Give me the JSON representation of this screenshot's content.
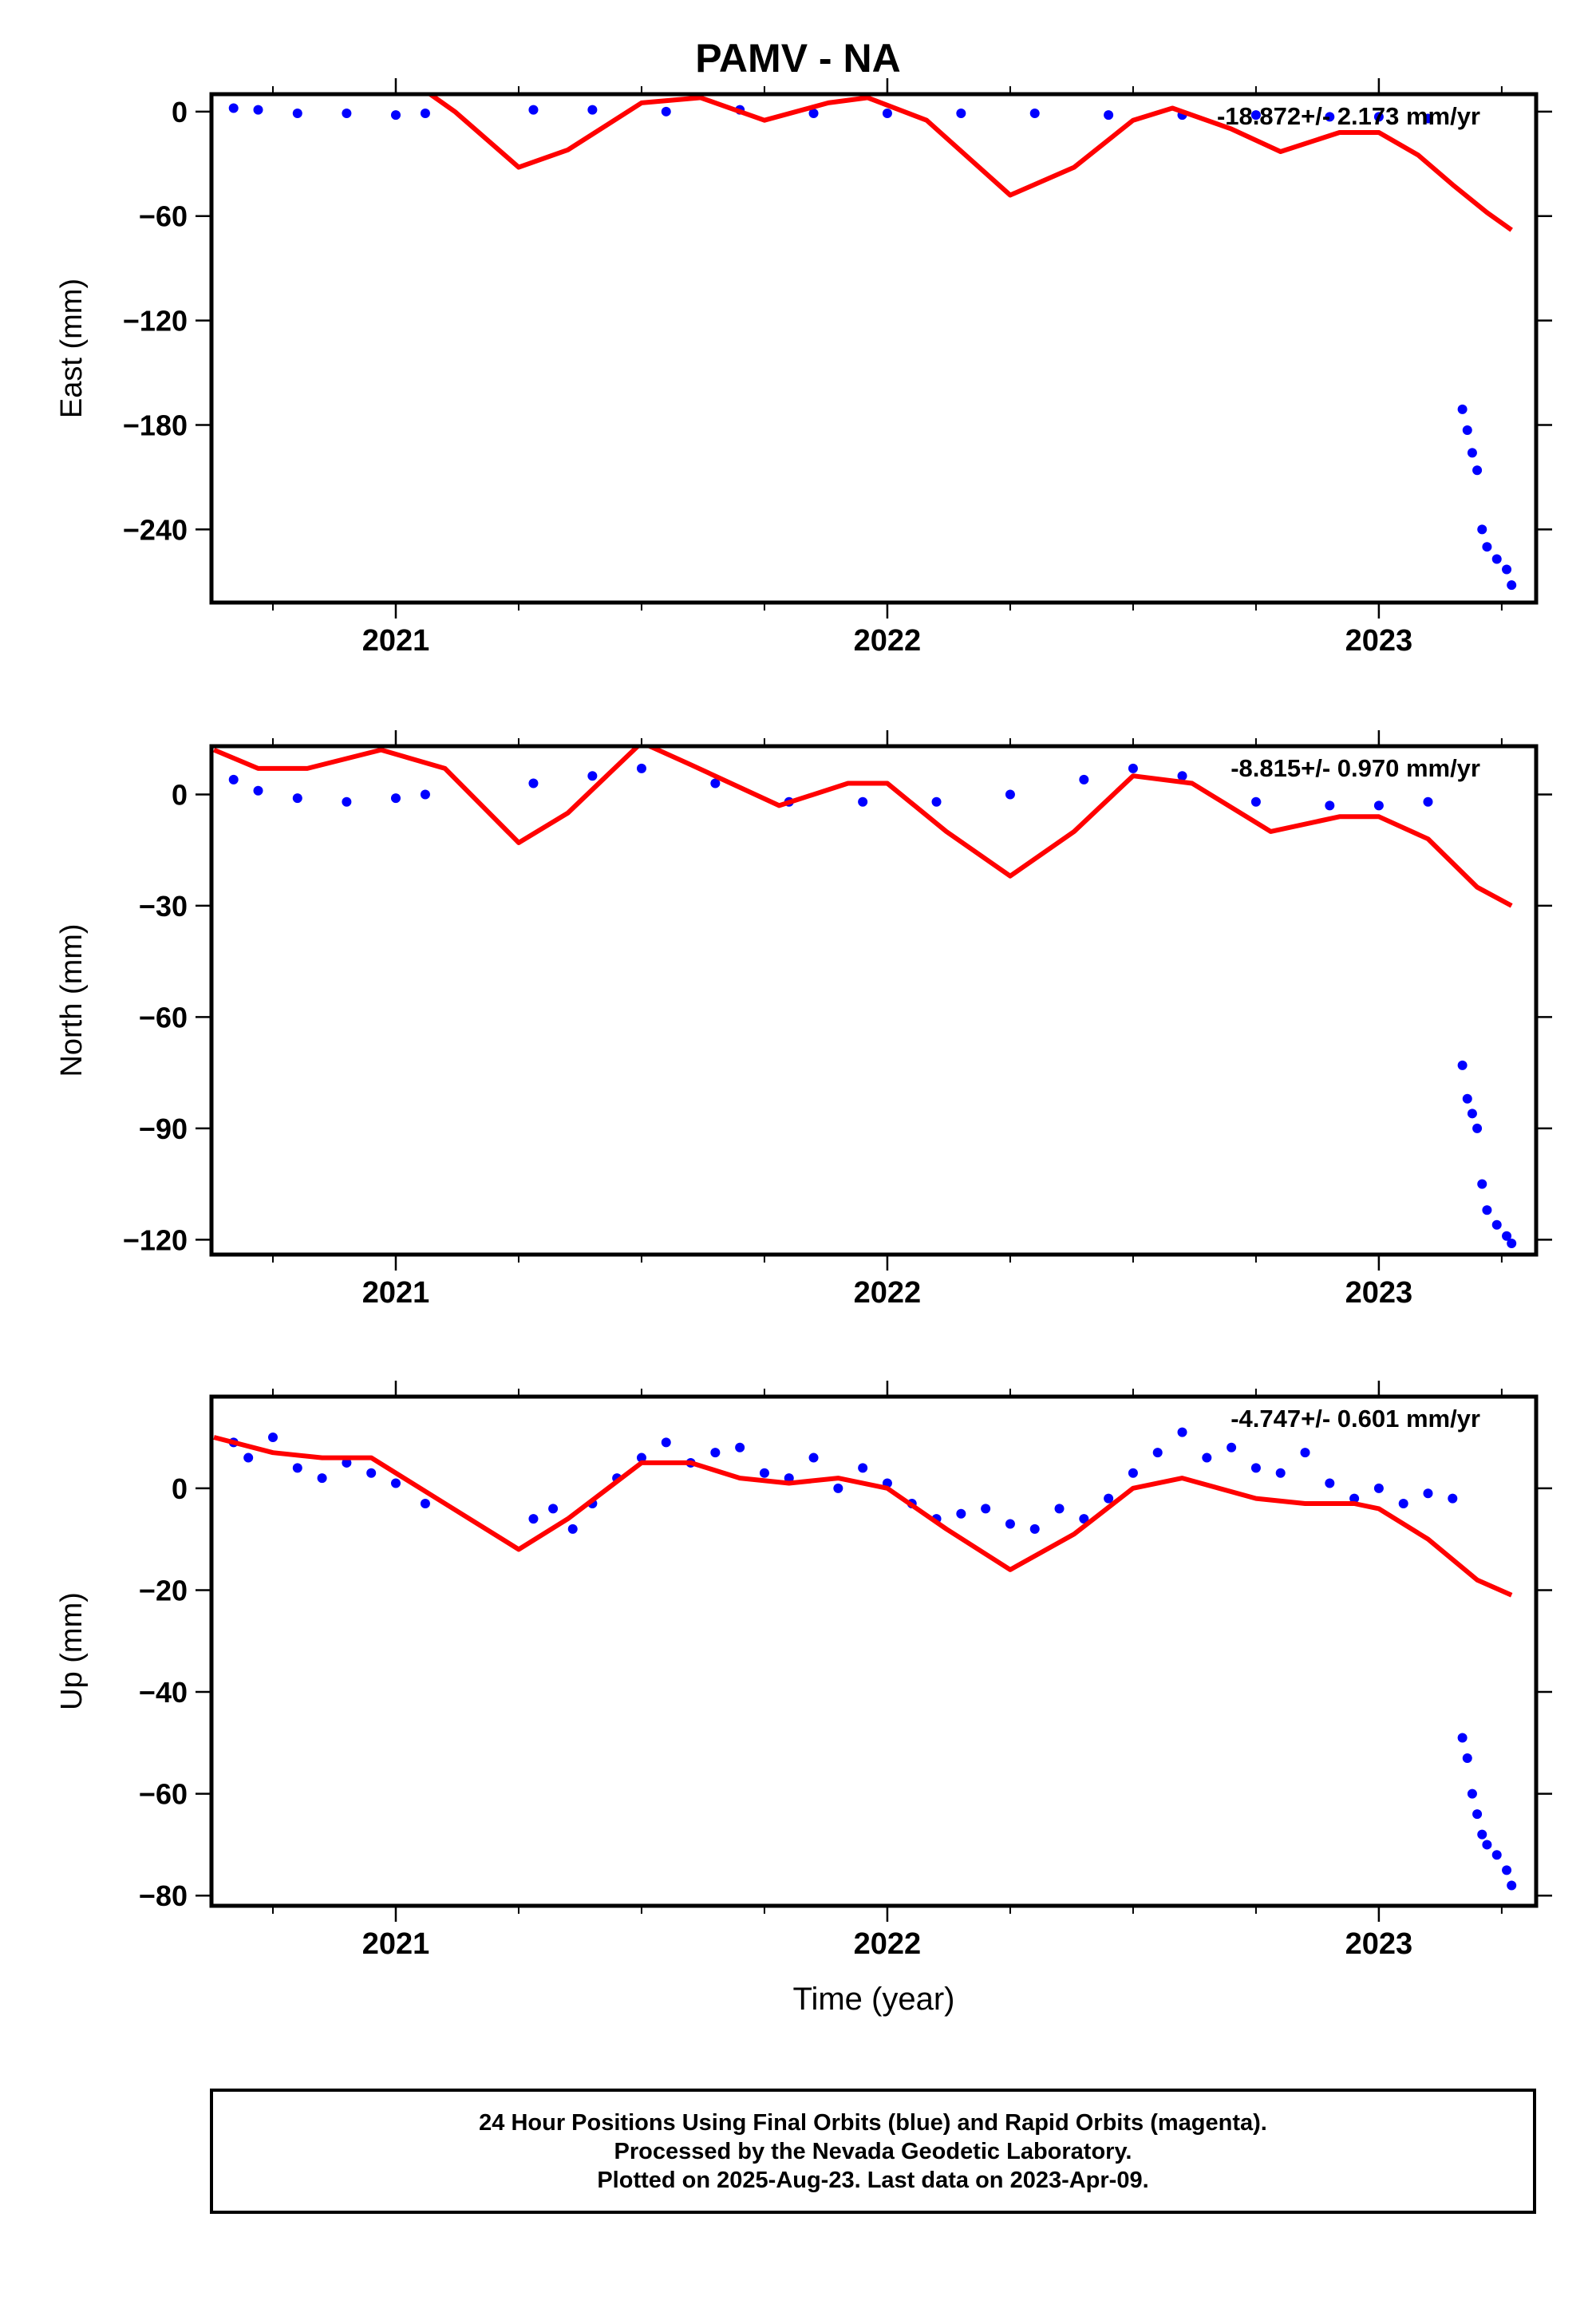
{
  "title": "PAMV - NA",
  "chart_data": [
    {
      "type": "scatter",
      "panel": "east",
      "ylabel": "East (mm)",
      "xlabel": "",
      "rate_label": "-18.872+/- 2.173 mm/yr",
      "ylim": [
        -282,
        10
      ],
      "yticks": [
        0,
        -60,
        -120,
        -180,
        -240
      ],
      "xlim": [
        2020.625,
        2023.32
      ],
      "xticks": [
        2021,
        2022,
        2023
      ],
      "series": [
        {
          "name": "",
          "color": "#0000ff",
          "x": [
            2020.67,
            2020.72,
            2020.8,
            2020.9,
            2021.0,
            2021.06,
            2021.28,
            2021.4,
            2021.55,
            2021.7,
            2021.85,
            2022.0,
            2022.15,
            2022.3,
            2022.45,
            2022.6,
            2022.75,
            2022.9,
            2023.0,
            2023.1,
            2023.17,
            2023.18,
            2023.19,
            2023.2,
            2023.21,
            2023.22,
            2023.24,
            2023.26,
            2023.27
          ],
          "y": [
            2,
            1,
            -1,
            -1,
            -2,
            -1,
            1,
            1,
            0,
            1,
            -1,
            -1,
            -1,
            -1,
            -2,
            -2,
            -2,
            -3,
            -3,
            -4,
            -171,
            -183,
            -196,
            -206,
            -240,
            -250,
            -257,
            -263,
            -272
          ]
        },
        {
          "name": "",
          "color": "#ff0000",
          "type": "line",
          "x": [
            2021.07,
            2021.12,
            2021.25,
            2021.35,
            2021.5,
            2021.62,
            2021.75,
            2021.88,
            2021.96,
            2022.08,
            2022.25,
            2022.38,
            2022.5,
            2022.58,
            2022.7,
            2022.8,
            2022.92,
            2023.0,
            2023.08,
            2023.15,
            2023.22,
            2023.27
          ],
          "y": [
            10,
            0,
            -32,
            -22,
            5,
            8,
            -5,
            5,
            8,
            -5,
            -48,
            -32,
            -5,
            2,
            -10,
            -23,
            -12,
            -12,
            -25,
            -42,
            -58,
            -68
          ]
        }
      ]
    },
    {
      "type": "scatter",
      "panel": "north",
      "ylabel": "North (mm)",
      "xlabel": "",
      "rate_label": "-8.815+/- 0.970 mm/yr",
      "ylim": [
        -124,
        13
      ],
      "yticks": [
        0,
        -30,
        -60,
        -90,
        -120
      ],
      "xlim": [
        2020.625,
        2023.32
      ],
      "xticks": [
        2021,
        2022,
        2023
      ],
      "series": [
        {
          "name": "",
          "color": "#0000ff",
          "x": [
            2020.67,
            2020.72,
            2020.8,
            2020.9,
            2021.0,
            2021.06,
            2021.28,
            2021.4,
            2021.5,
            2021.65,
            2021.8,
            2021.95,
            2022.1,
            2022.25,
            2022.4,
            2022.5,
            2022.6,
            2022.75,
            2022.9,
            2023.0,
            2023.1,
            2023.17,
            2023.18,
            2023.19,
            2023.2,
            2023.21,
            2023.22,
            2023.24,
            2023.26,
            2023.27
          ],
          "y": [
            4,
            1,
            -1,
            -2,
            -1,
            0,
            3,
            5,
            7,
            3,
            -2,
            -2,
            -2,
            0,
            4,
            7,
            5,
            -2,
            -3,
            -3,
            -2,
            -73,
            -82,
            -86,
            -90,
            -105,
            -112,
            -116,
            -119,
            -121
          ]
        },
        {
          "name": "",
          "color": "#ff0000",
          "type": "line",
          "x": [
            2020.63,
            2020.72,
            2020.82,
            2020.97,
            2021.1,
            2021.25,
            2021.35,
            2021.5,
            2021.6,
            2021.78,
            2021.92,
            2022.0,
            2022.12,
            2022.25,
            2022.38,
            2022.5,
            2022.62,
            2022.78,
            2022.92,
            2023.0,
            2023.1,
            2023.2,
            2023.27
          ],
          "y": [
            12,
            7,
            7,
            12,
            7,
            -13,
            -5,
            14,
            8,
            -3,
            3,
            3,
            -10,
            -22,
            -10,
            5,
            3,
            -10,
            -6,
            -6,
            -12,
            -25,
            -30
          ]
        }
      ]
    },
    {
      "type": "scatter",
      "panel": "up",
      "ylabel": "Up (mm)",
      "xlabel": "Time (year)",
      "rate_label": "-4.747+/- 0.601 mm/yr",
      "ylim": [
        -82,
        18
      ],
      "yticks": [
        0,
        -20,
        -40,
        -60,
        -80
      ],
      "xlim": [
        2020.625,
        2023.32
      ],
      "xticks": [
        2021,
        2022,
        2023
      ],
      "series": [
        {
          "name": "",
          "color": "#0000ff",
          "x": [
            2020.67,
            2020.7,
            2020.75,
            2020.8,
            2020.85,
            2020.9,
            2020.95,
            2021.0,
            2021.06,
            2021.28,
            2021.32,
            2021.36,
            2021.4,
            2021.45,
            2021.5,
            2021.55,
            2021.6,
            2021.65,
            2021.7,
            2021.75,
            2021.8,
            2021.85,
            2021.9,
            2021.95,
            2022.0,
            2022.05,
            2022.1,
            2022.15,
            2022.2,
            2022.25,
            2022.3,
            2022.35,
            2022.4,
            2022.45,
            2022.5,
            2022.55,
            2022.6,
            2022.65,
            2022.7,
            2022.75,
            2022.8,
            2022.85,
            2022.9,
            2022.95,
            2023.0,
            2023.05,
            2023.1,
            2023.15,
            2023.17,
            2023.18,
            2023.19,
            2023.2,
            2023.21,
            2023.22,
            2023.24,
            2023.26,
            2023.27
          ],
          "y": [
            9,
            6,
            10,
            4,
            2,
            5,
            3,
            1,
            -3,
            -6,
            -4,
            -8,
            -3,
            2,
            6,
            9,
            5,
            7,
            8,
            3,
            2,
            6,
            0,
            4,
            1,
            -3,
            -6,
            -5,
            -4,
            -7,
            -8,
            -4,
            -6,
            -2,
            3,
            7,
            11,
            6,
            8,
            4,
            3,
            7,
            1,
            -2,
            0,
            -3,
            -1,
            -2,
            -49,
            -53,
            -60,
            -64,
            -68,
            -70,
            -72,
            -75,
            -78
          ]
        },
        {
          "name": "",
          "color": "#ff0000",
          "type": "line",
          "x": [
            2020.63,
            2020.75,
            2020.85,
            2020.95,
            2021.1,
            2021.25,
            2021.35,
            2021.5,
            2021.6,
            2021.7,
            2021.8,
            2021.9,
            2022.0,
            2022.12,
            2022.25,
            2022.38,
            2022.5,
            2022.6,
            2022.75,
            2022.85,
            2022.95,
            2023.0,
            2023.1,
            2023.2,
            2023.27
          ],
          "y": [
            10,
            7,
            6,
            6,
            -3,
            -12,
            -6,
            5,
            5,
            2,
            1,
            2,
            0,
            -8,
            -16,
            -9,
            0,
            2,
            -2,
            -3,
            -3,
            -4,
            -10,
            -18,
            -21
          ]
        }
      ]
    }
  ],
  "footer": {
    "line1": "24 Hour Positions Using Final Orbits (blue) and Rapid Orbits (magenta).",
    "line2": "Processed by the Nevada Geodetic Laboratory.",
    "line3": "Plotted on 2025-Aug-23. Last data on 2023-Apr-09."
  }
}
